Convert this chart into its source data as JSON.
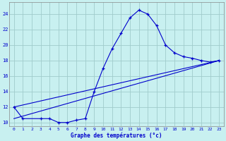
{
  "xlabel": "Graphe des températures (°c)",
  "bg_color": "#c8f0f0",
  "grid_color": "#a0cccc",
  "line_color": "#0000cc",
  "xlim": [
    -0.5,
    23.5
  ],
  "ylim": [
    9.5,
    25.5
  ],
  "xticks": [
    0,
    1,
    2,
    3,
    4,
    5,
    6,
    7,
    8,
    9,
    10,
    11,
    12,
    13,
    14,
    15,
    16,
    17,
    18,
    19,
    20,
    21,
    22,
    23
  ],
  "yticks": [
    10,
    12,
    14,
    16,
    18,
    20,
    22,
    24
  ],
  "curve1_x": [
    0,
    1,
    3,
    4,
    5,
    6,
    7,
    8,
    9,
    10,
    11,
    12,
    13,
    14,
    15,
    16,
    17,
    18,
    19,
    20,
    21,
    22,
    23
  ],
  "curve1_y": [
    12,
    10.5,
    10.5,
    10.5,
    10,
    10,
    10.3,
    10.5,
    14,
    17,
    19.5,
    21.5,
    23.5,
    24.5,
    24,
    22.5,
    20,
    19.0,
    18.5,
    18.3,
    18,
    17.8,
    18
  ],
  "curve2_x": [
    0,
    23
  ],
  "curve2_y": [
    10.5,
    18
  ],
  "curve3_x": [
    0,
    23
  ],
  "curve3_y": [
    12.0,
    18
  ]
}
